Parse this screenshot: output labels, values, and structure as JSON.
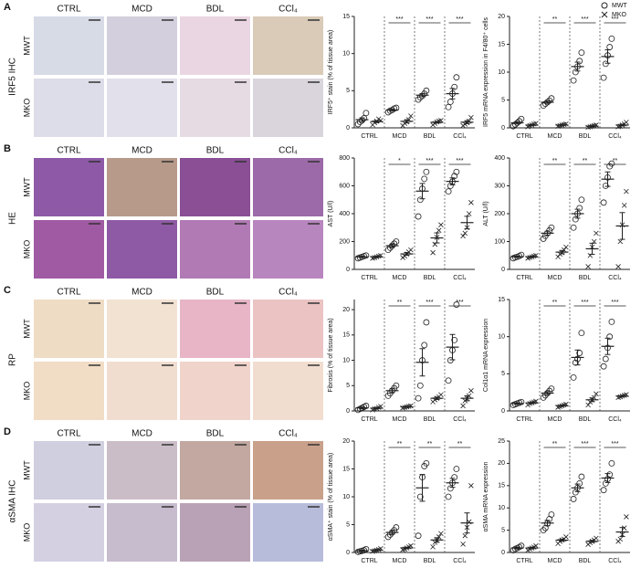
{
  "panels": [
    {
      "letter": "A",
      "stain": "IRF5 IHC",
      "columns": [
        "CTRL",
        "MCD",
        "BDL",
        "CCl₄"
      ],
      "rows": [
        "MWT",
        "MKO"
      ]
    },
    {
      "letter": "B",
      "stain": "HE",
      "columns": [
        "CTRL",
        "MCD",
        "BDL",
        "CCl₄"
      ],
      "rows": [
        "MWT",
        "MKO"
      ]
    },
    {
      "letter": "C",
      "stain": "RP",
      "columns": [
        "CTRL",
        "MCD",
        "BDL",
        "CCl₄"
      ],
      "rows": [
        "MWT",
        "MKO"
      ]
    },
    {
      "letter": "D",
      "stain": "αSMA IHC",
      "columns": [
        "CTRL",
        "MCD",
        "BDL",
        "CCl₄"
      ],
      "rows": [
        "MWT",
        "MKO"
      ]
    }
  ],
  "chart_data": [
    {
      "type": "dot",
      "ylabel": "IRF5⁺ stain (% of tissue area)",
      "categories": [
        "CTRL",
        "MCD",
        "BDL",
        "CCl₄"
      ],
      "ylim": [
        0,
        15
      ],
      "yticks": [
        0,
        5,
        10,
        15
      ],
      "significance": [
        "***",
        "***",
        "***"
      ],
      "series": [
        {
          "name": "MWT",
          "marker": "circle",
          "color": "#222",
          "mean": [
            1.1,
            2.4,
            4.4,
            4.6
          ],
          "sem": [
            0.25,
            0.1,
            0.2,
            0.7
          ],
          "points": [
            [
              0.5,
              0.8,
              1.0,
              1.3,
              2.0
            ],
            [
              2.1,
              2.3,
              2.4,
              2.6,
              2.7
            ],
            [
              3.8,
              4.1,
              4.3,
              4.6,
              5.0
            ],
            [
              2.8,
              3.5,
              4.6,
              5.5,
              6.8
            ]
          ]
        },
        {
          "name": "MKO",
          "marker": "cross",
          "color": "#222",
          "mean": [
            0.84,
            0.88,
            0.74,
            0.76
          ],
          "sem": [
            0.14,
            0.22,
            0.1,
            0.2
          ],
          "points": [
            [
              0.4,
              0.7,
              0.9,
              1.2,
              1.0
            ],
            [
              0.3,
              0.6,
              0.8,
              1.1,
              1.6
            ],
            [
              0.4,
              0.6,
              0.8,
              0.9,
              1.0
            ],
            [
              0.3,
              0.5,
              0.7,
              0.9,
              1.4
            ]
          ]
        }
      ]
    },
    {
      "type": "dot",
      "ylabel": "IRF5 mRNA expression in F4/80⁺ cells",
      "categories": [
        "CTRL",
        "MCD",
        "BDL",
        "CCl₄"
      ],
      "ylim": [
        0,
        20
      ],
      "yticks": [
        0,
        5,
        10,
        15,
        20
      ],
      "significance": [
        "**",
        "***",
        "***"
      ],
      "series": [
        {
          "marker": "circle",
          "color": "#222",
          "mean": [
            0.9,
            4.6,
            11.0,
            12.8
          ],
          "sem": [
            0.2,
            0.2,
            0.8,
            1.2
          ],
          "points": [
            [
              0.3,
              0.6,
              0.9,
              1.2,
              1.6
            ],
            [
              4.0,
              4.3,
              4.6,
              4.9,
              5.3
            ],
            [
              8.5,
              10.0,
              11.0,
              12.0,
              13.5
            ],
            [
              9.0,
              11.5,
              13.0,
              14.5,
              16.0
            ]
          ]
        },
        {
          "marker": "cross",
          "color": "#222",
          "mean": [
            0.5,
            0.5,
            0.3,
            0.5
          ],
          "sem": [
            0.1,
            0.05,
            0.07,
            0.14
          ],
          "points": [
            [
              0.2,
              0.4,
              0.5,
              0.7,
              0.8
            ],
            [
              0.3,
              0.4,
              0.5,
              0.6,
              0.7
            ],
            [
              0.1,
              0.2,
              0.3,
              0.4,
              0.5
            ],
            [
              0.2,
              0.3,
              0.5,
              0.7,
              1.0
            ]
          ]
        }
      ]
    },
    {
      "type": "dot",
      "ylabel": "AST (U/l)",
      "categories": [
        "CTRL",
        "MCD",
        "BDL",
        "CCl₄"
      ],
      "ylim": [
        0,
        800
      ],
      "yticks": [
        0,
        200,
        400,
        600,
        800
      ],
      "significance": [
        "*",
        "***",
        "***"
      ],
      "series": [
        {
          "marker": "circle",
          "color": "#222",
          "mean": [
            90,
            170,
            562,
            632
          ],
          "sem": [
            4,
            10,
            55,
            25
          ],
          "points": [
            [
              80,
              85,
              90,
              95,
              100
            ],
            [
              140,
              155,
              170,
              185,
              200
            ],
            [
              380,
              500,
              580,
              650,
              700
            ],
            [
              560,
              600,
              630,
              670,
              700
            ]
          ]
        },
        {
          "marker": "cross",
          "color": "#222",
          "mean": [
            90,
            111,
            226,
            336
          ],
          "sem": [
            4,
            10,
            36,
            45
          ],
          "points": [
            [
              80,
              85,
              90,
              95,
              100
            ],
            [
              85,
              95,
              110,
              125,
              140
            ],
            [
              120,
              180,
              230,
              280,
              320
            ],
            [
              240,
              260,
              300,
              400,
              480
            ]
          ]
        }
      ]
    },
    {
      "type": "dot",
      "ylabel": "ALT (U/l)",
      "categories": [
        "CTRL",
        "MCD",
        "BDL",
        "CCl₄"
      ],
      "ylim": [
        0,
        400
      ],
      "yticks": [
        0,
        100,
        200,
        300,
        400
      ],
      "significance": [
        "**",
        "**",
        "**"
      ],
      "series": [
        {
          "marker": "circle",
          "color": "#222",
          "mean": [
            45.6,
            130,
            200,
            324
          ],
          "sem": [
            2,
            7,
            16,
            26
          ],
          "points": [
            [
              40,
              43,
              45,
              48,
              52
            ],
            [
              110,
              120,
              130,
              140,
              150
            ],
            [
              150,
              180,
              200,
              220,
              250
            ],
            [
              240,
              300,
              330,
              370,
              380
            ]
          ]
        },
        {
          "marker": "cross",
          "color": "#222",
          "mean": [
            45,
            62,
            74,
            156
          ],
          "sem": [
            2,
            6,
            20,
            48
          ],
          "points": [
            [
              40,
              43,
              45,
              48,
              50
            ],
            [
              45,
              55,
              60,
              70,
              80
            ],
            [
              10,
              50,
              80,
              100,
              130
            ],
            [
              10,
              100,
              160,
              230,
              280
            ]
          ]
        }
      ]
    },
    {
      "type": "dot",
      "ylabel": "Fibrosis (% of tissue area)",
      "categories": [
        "CTRL",
        "MCD",
        "BDL",
        "CCl₄"
      ],
      "ylim": [
        0,
        22
      ],
      "yticks": [
        0,
        5,
        10,
        15,
        20
      ],
      "significance": [
        "**",
        "***",
        "***"
      ],
      "series": [
        {
          "marker": "circle",
          "color": "#222",
          "mean": [
            0.6,
            4.0,
            9.6,
            12.6
          ],
          "sem": [
            0.14,
            0.35,
            2.7,
            2.5
          ],
          "points": [
            [
              0.2,
              0.4,
              0.6,
              0.8,
              1.0
            ],
            [
              3.0,
              3.5,
              4.0,
              4.5,
              5.0
            ],
            [
              2.5,
              5.0,
              10.0,
              13.0,
              17.5
            ],
            [
              6.0,
              10.0,
              12.0,
              14.0,
              21.0
            ]
          ]
        },
        {
          "marker": "cross",
          "color": "#222",
          "mean": [
            0.54,
            0.8,
            2.5,
            2.5
          ],
          "sem": [
            0.12,
            0.07,
            0.24,
            0.5
          ],
          "points": [
            [
              0.2,
              0.4,
              0.5,
              0.7,
              0.9
            ],
            [
              0.6,
              0.7,
              0.8,
              0.9,
              1.0
            ],
            [
              1.8,
              2.2,
              2.5,
              2.8,
              3.2
            ],
            [
              1.0,
              2.0,
              2.5,
              3.0,
              4.0
            ]
          ]
        }
      ]
    },
    {
      "type": "dot",
      "ylabel": "Col1α1 mRNA expression",
      "categories": [
        "CTRL",
        "MCD",
        "BDL",
        "CCl₄"
      ],
      "ylim": [
        0,
        15
      ],
      "yticks": [
        0,
        5,
        10,
        15
      ],
      "significance": [
        "**",
        "***",
        "***"
      ],
      "series": [
        {
          "marker": "circle",
          "color": "#222",
          "mean": [
            1.0,
            2.4,
            7.2,
            8.7
          ],
          "sem": [
            0.07,
            0.2,
            1.0,
            1.1
          ],
          "points": [
            [
              0.8,
              0.9,
              1.0,
              1.1,
              1.2
            ],
            [
              1.8,
              2.1,
              2.4,
              2.7,
              3.0
            ],
            [
              4.5,
              6.5,
              7.0,
              7.8,
              10.5
            ],
            [
              6.0,
              7.0,
              8.5,
              10.0,
              12.0
            ]
          ]
        },
        {
          "marker": "cross",
          "color": "#222",
          "mean": [
            1.08,
            0.7,
            1.5,
            2.0
          ],
          "sem": [
            0.08,
            0.07,
            0.25,
            0.07
          ],
          "points": [
            [
              0.8,
              1.0,
              1.1,
              1.2,
              1.3
            ],
            [
              0.5,
              0.6,
              0.7,
              0.8,
              0.9
            ],
            [
              0.8,
              1.2,
              1.5,
              1.8,
              2.3
            ],
            [
              1.8,
              1.9,
              2.0,
              2.1,
              2.2
            ]
          ]
        }
      ]
    },
    {
      "type": "dot",
      "ylabel": "αSMA⁺ stain (% of tissue area)",
      "categories": [
        "CTRL",
        "MCD",
        "BDL",
        "CCl₄"
      ],
      "ylim": [
        0,
        20
      ],
      "yticks": [
        0,
        5,
        10,
        15,
        20
      ],
      "significance": [
        "**",
        "**",
        "**"
      ],
      "series": [
        {
          "marker": "circle",
          "color": "#222",
          "mean": [
            0.32,
            3.6,
            11.6,
            12.5
          ],
          "sem": [
            0.09,
            0.3,
            2.4,
            0.8
          ],
          "points": [
            [
              0.1,
              0.2,
              0.3,
              0.4,
              0.6
            ],
            [
              2.8,
              3.2,
              3.6,
              4.0,
              4.5
            ],
            [
              3.0,
              10.0,
              13.5,
              15.5,
              16.0
            ],
            [
              10.0,
              11.5,
              12.5,
              13.5,
              15.0
            ]
          ]
        },
        {
          "marker": "cross",
          "color": "#222",
          "mean": [
            0.42,
            0.82,
            2.24,
            5.3
          ],
          "sem": [
            0.09,
            0.13,
            0.41,
            1.8
          ],
          "points": [
            [
              0.2,
              0.3,
              0.4,
              0.5,
              0.7
            ],
            [
              0.5,
              0.6,
              0.8,
              1.0,
              1.2
            ],
            [
              1.0,
              1.8,
              2.2,
              2.8,
              3.4
            ],
            [
              1.5,
              3.0,
              4.5,
              5.5,
              12.0
            ]
          ]
        }
      ]
    },
    {
      "type": "dot",
      "ylabel": "αSMA mRNA expression",
      "categories": [
        "CTRL",
        "MCD",
        "BDL",
        "CCl₄"
      ],
      "ylim": [
        0,
        25
      ],
      "yticks": [
        0,
        5,
        10,
        15,
        20,
        25
      ],
      "significance": [
        "**",
        "***",
        "***"
      ],
      "series": [
        {
          "marker": "circle",
          "color": "#222",
          "mean": [
            1.0,
            6.6,
            14.5,
            16.7
          ],
          "sem": [
            0.17,
            0.6,
            0.85,
            1.0
          ],
          "points": [
            [
              0.5,
              0.8,
              1.0,
              1.2,
              1.5
            ],
            [
              5.0,
              5.5,
              6.5,
              7.5,
              8.5
            ],
            [
              12.0,
              13.5,
              14.5,
              15.5,
              17.0
            ],
            [
              14.0,
              15.5,
              16.5,
              17.5,
              20.0
            ]
          ]
        },
        {
          "marker": "cross",
          "color": "#222",
          "mean": [
            1.0,
            2.76,
            2.5,
            4.6
          ],
          "sem": [
            0.17,
            0.24,
            0.24,
            1.0
          ],
          "points": [
            [
              0.5,
              0.8,
              1.0,
              1.2,
              1.5
            ],
            [
              2.0,
              2.5,
              2.8,
              3.0,
              3.5
            ],
            [
              1.8,
              2.2,
              2.5,
              2.8,
              3.2
            ],
            [
              2.5,
              3.0,
              4.0,
              5.5,
              8.0
            ]
          ]
        }
      ]
    }
  ]
}
